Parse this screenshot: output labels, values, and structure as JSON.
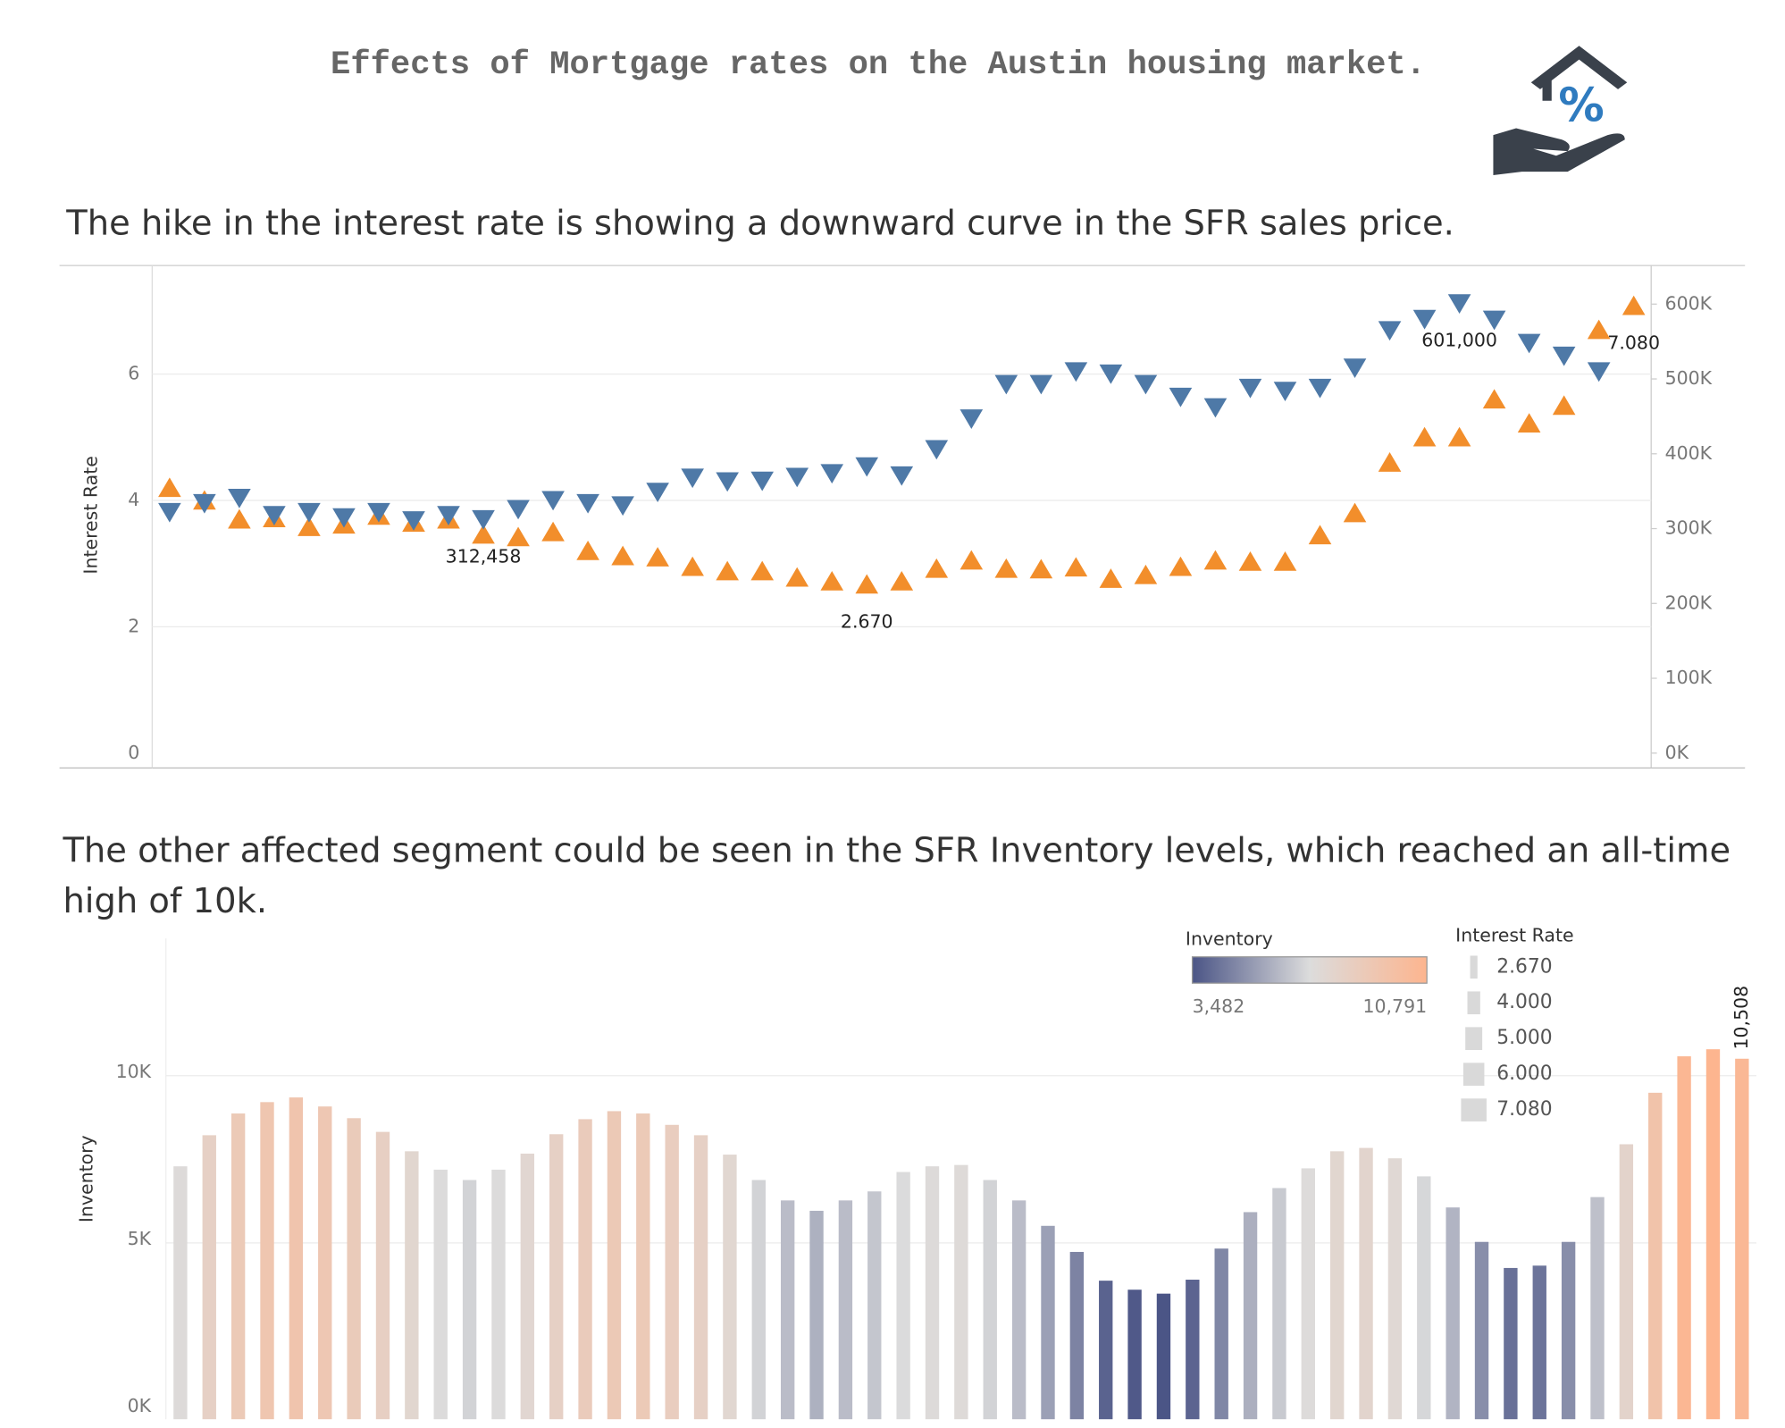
{
  "header": {
    "title": "Effects of Mortgage rates on the Austin housing market."
  },
  "chart_data": [
    {
      "type": "scatter",
      "title": "The hike in the interest rate is showing a downward curve in the SFR sales price.",
      "ylabel": "Interest Rate",
      "ylim": [
        0,
        7.7
      ],
      "yticks": [
        0,
        2,
        4,
        6
      ],
      "y2lim": [
        0,
        650000
      ],
      "y2ticks": [
        {
          "value": 0,
          "label": "0K"
        },
        {
          "value": 100000,
          "label": "100K"
        },
        {
          "value": 200000,
          "label": "200K"
        },
        {
          "value": 300000,
          "label": "300K"
        },
        {
          "value": 400000,
          "label": "400K"
        },
        {
          "value": 500000,
          "label": "500K"
        },
        {
          "value": 600000,
          "label": "600K"
        }
      ],
      "grid": true,
      "series": [
        {
          "color": "#f28e2b",
          "marker": "triangle-up",
          "values": [
            4.2,
            4.0,
            3.7,
            3.72,
            3.58,
            3.62,
            3.76,
            3.65,
            3.7,
            3.46,
            3.42,
            3.5,
            3.2,
            3.12,
            3.1,
            2.95,
            2.88,
            2.88,
            2.78,
            2.72,
            2.67,
            2.72,
            2.92,
            3.05,
            2.92,
            2.91,
            2.94,
            2.76,
            2.82,
            2.95,
            3.05,
            3.03,
            3.03,
            3.45,
            3.8,
            4.6,
            5.0,
            5.0,
            5.6,
            5.22,
            5.5,
            6.7,
            7.08
          ],
          "value_labels": [
            null,
            null,
            null,
            null,
            null,
            null,
            null,
            null,
            null,
            null,
            null,
            null,
            null,
            null,
            null,
            null,
            null,
            null,
            null,
            null,
            "2.670",
            null,
            null,
            null,
            null,
            null,
            null,
            null,
            null,
            null,
            null,
            null,
            null,
            null,
            null,
            null,
            null,
            null,
            null,
            null,
            null,
            null,
            "7.080"
          ]
        },
        {
          "color": "#4e79a7",
          "marker": "triangle-down",
          "axis": "y2",
          "values": [
            322000,
            334000,
            341000,
            318000,
            322000,
            315000,
            322000,
            311000,
            318000,
            312458,
            326000,
            338000,
            334000,
            331000,
            349000,
            368000,
            363000,
            364000,
            369000,
            374000,
            383000,
            371000,
            406000,
            447000,
            493000,
            493000,
            510000,
            507000,
            493000,
            476000,
            462000,
            488000,
            484000,
            488000,
            515000,
            565000,
            580000,
            601000,
            579000,
            548000,
            531000,
            510000,
            null
          ],
          "value_labels": [
            null,
            null,
            null,
            null,
            null,
            null,
            null,
            null,
            null,
            "312,458",
            null,
            null,
            null,
            null,
            null,
            null,
            null,
            null,
            null,
            null,
            null,
            null,
            null,
            null,
            null,
            null,
            null,
            null,
            null,
            null,
            null,
            null,
            null,
            null,
            null,
            null,
            null,
            "601,000",
            null,
            null,
            null,
            null,
            null
          ]
        }
      ]
    },
    {
      "type": "bar",
      "title": "The other affected segment could be seen in the SFR Inventory levels, which reached an all-time high of 10k.",
      "ylabel": "Inventory",
      "ylim": [
        0,
        14000
      ],
      "yticks": [
        {
          "value": 0,
          "label": "0K"
        },
        {
          "value": 5000,
          "label": "5K"
        },
        {
          "value": 10000,
          "label": "10K"
        }
      ],
      "grid": true,
      "values": [
        7290,
        8220,
        8870,
        9210,
        9350,
        9080,
        8730,
        8320,
        7740,
        7190,
        6880,
        7190,
        7670,
        8250,
        8700,
        8940,
        8870,
        8530,
        8220,
        7640,
        6880,
        6270,
        5960,
        6270,
        6540,
        7120,
        7290,
        7330,
        6880,
        6270,
        5510,
        4730,
        3870,
        3600,
        3482,
        3900,
        4830,
        5920,
        6640,
        7230,
        7740,
        7840,
        7530,
        6990,
        6060,
        5030,
        4250,
        4320,
        5030,
        6370,
        7950,
        9490,
        10580,
        10791,
        10508
      ],
      "value_labels": [
        null,
        null,
        null,
        null,
        null,
        null,
        null,
        null,
        null,
        null,
        null,
        null,
        null,
        null,
        null,
        null,
        null,
        null,
        null,
        null,
        null,
        null,
        null,
        null,
        null,
        null,
        null,
        null,
        null,
        null,
        null,
        null,
        null,
        null,
        null,
        null,
        null,
        null,
        null,
        null,
        null,
        null,
        null,
        null,
        null,
        null,
        null,
        null,
        null,
        null,
        null,
        null,
        null,
        null,
        "10,508"
      ],
      "color_legend": {
        "title": "Inventory",
        "colors": [
          "#4b5586",
          "#dcdcdc",
          "#fdb58f"
        ],
        "range": [
          {
            "value": 3482,
            "label": "3,482"
          },
          {
            "value": 10791,
            "label": "10,791"
          }
        ]
      },
      "size_legend": {
        "title": "Interest Rate",
        "color": "#d9d9d9",
        "values": [
          {
            "value": 2.67,
            "label": "2.670"
          },
          {
            "value": 4,
            "label": "4.000"
          },
          {
            "value": 5,
            "label": "5.000"
          },
          {
            "value": 6,
            "label": "6.000"
          },
          {
            "value": 7.08,
            "label": "7.080"
          }
        ]
      }
    }
  ]
}
